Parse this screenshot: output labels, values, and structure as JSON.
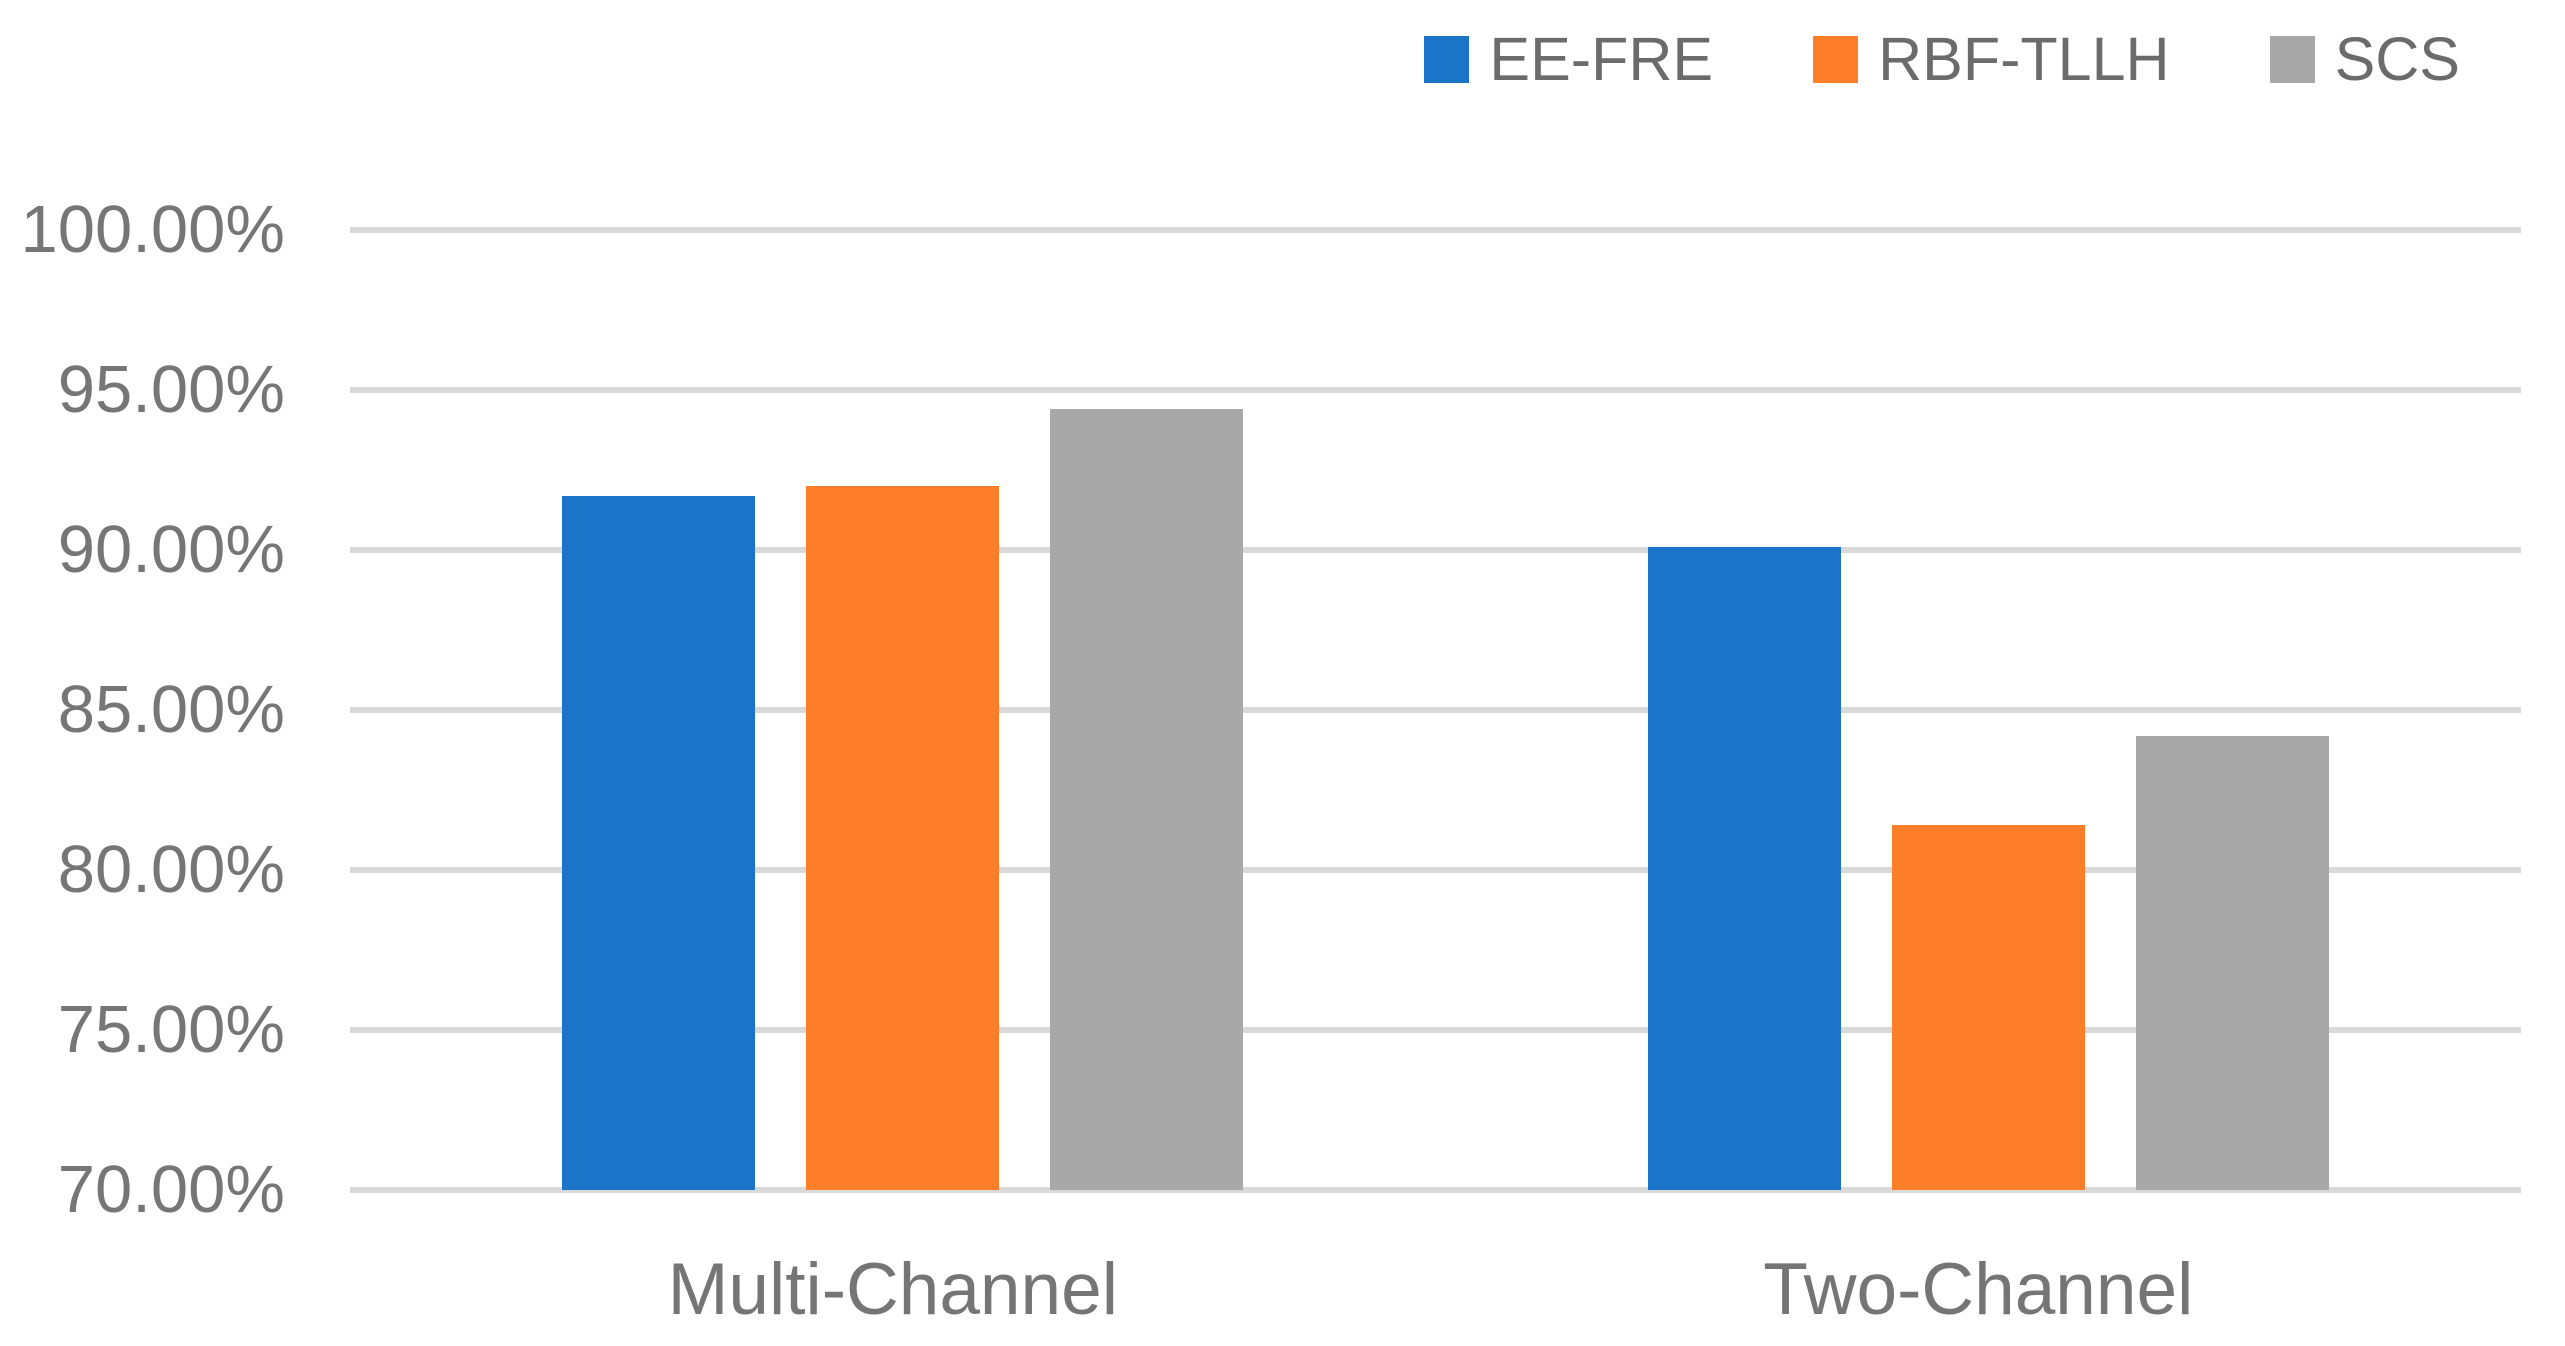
{
  "chart_data": {
    "type": "bar",
    "title": "",
    "categories": [
      "Multi-Channel",
      "Two-Channel"
    ],
    "series": [
      {
        "name": "EE-FRE",
        "color": "#1b74c8",
        "values": [
          91.7,
          90.1
        ]
      },
      {
        "name": "RBF-TLLH",
        "color": "#ff7e29",
        "values": [
          92.0,
          81.4
        ]
      },
      {
        "name": "SCS",
        "color": "#a8a8a8",
        "values": [
          94.4,
          84.2
        ]
      }
    ],
    "ylim": [
      70,
      100
    ],
    "ytick_step": 5,
    "ytick_labels": [
      "70.00%",
      "75.00%",
      "80.00%",
      "85.00%",
      "90.00%",
      "95.00%",
      "100.00%"
    ],
    "grid": true,
    "legend_position": "top-right",
    "value_format": "percent"
  },
  "colors": {
    "background": "#ffffff",
    "gridline": "#d9d9d9",
    "axis_label_text": "#767676",
    "category_label_text": "#757575",
    "legend_text": "#6b6b6b"
  }
}
